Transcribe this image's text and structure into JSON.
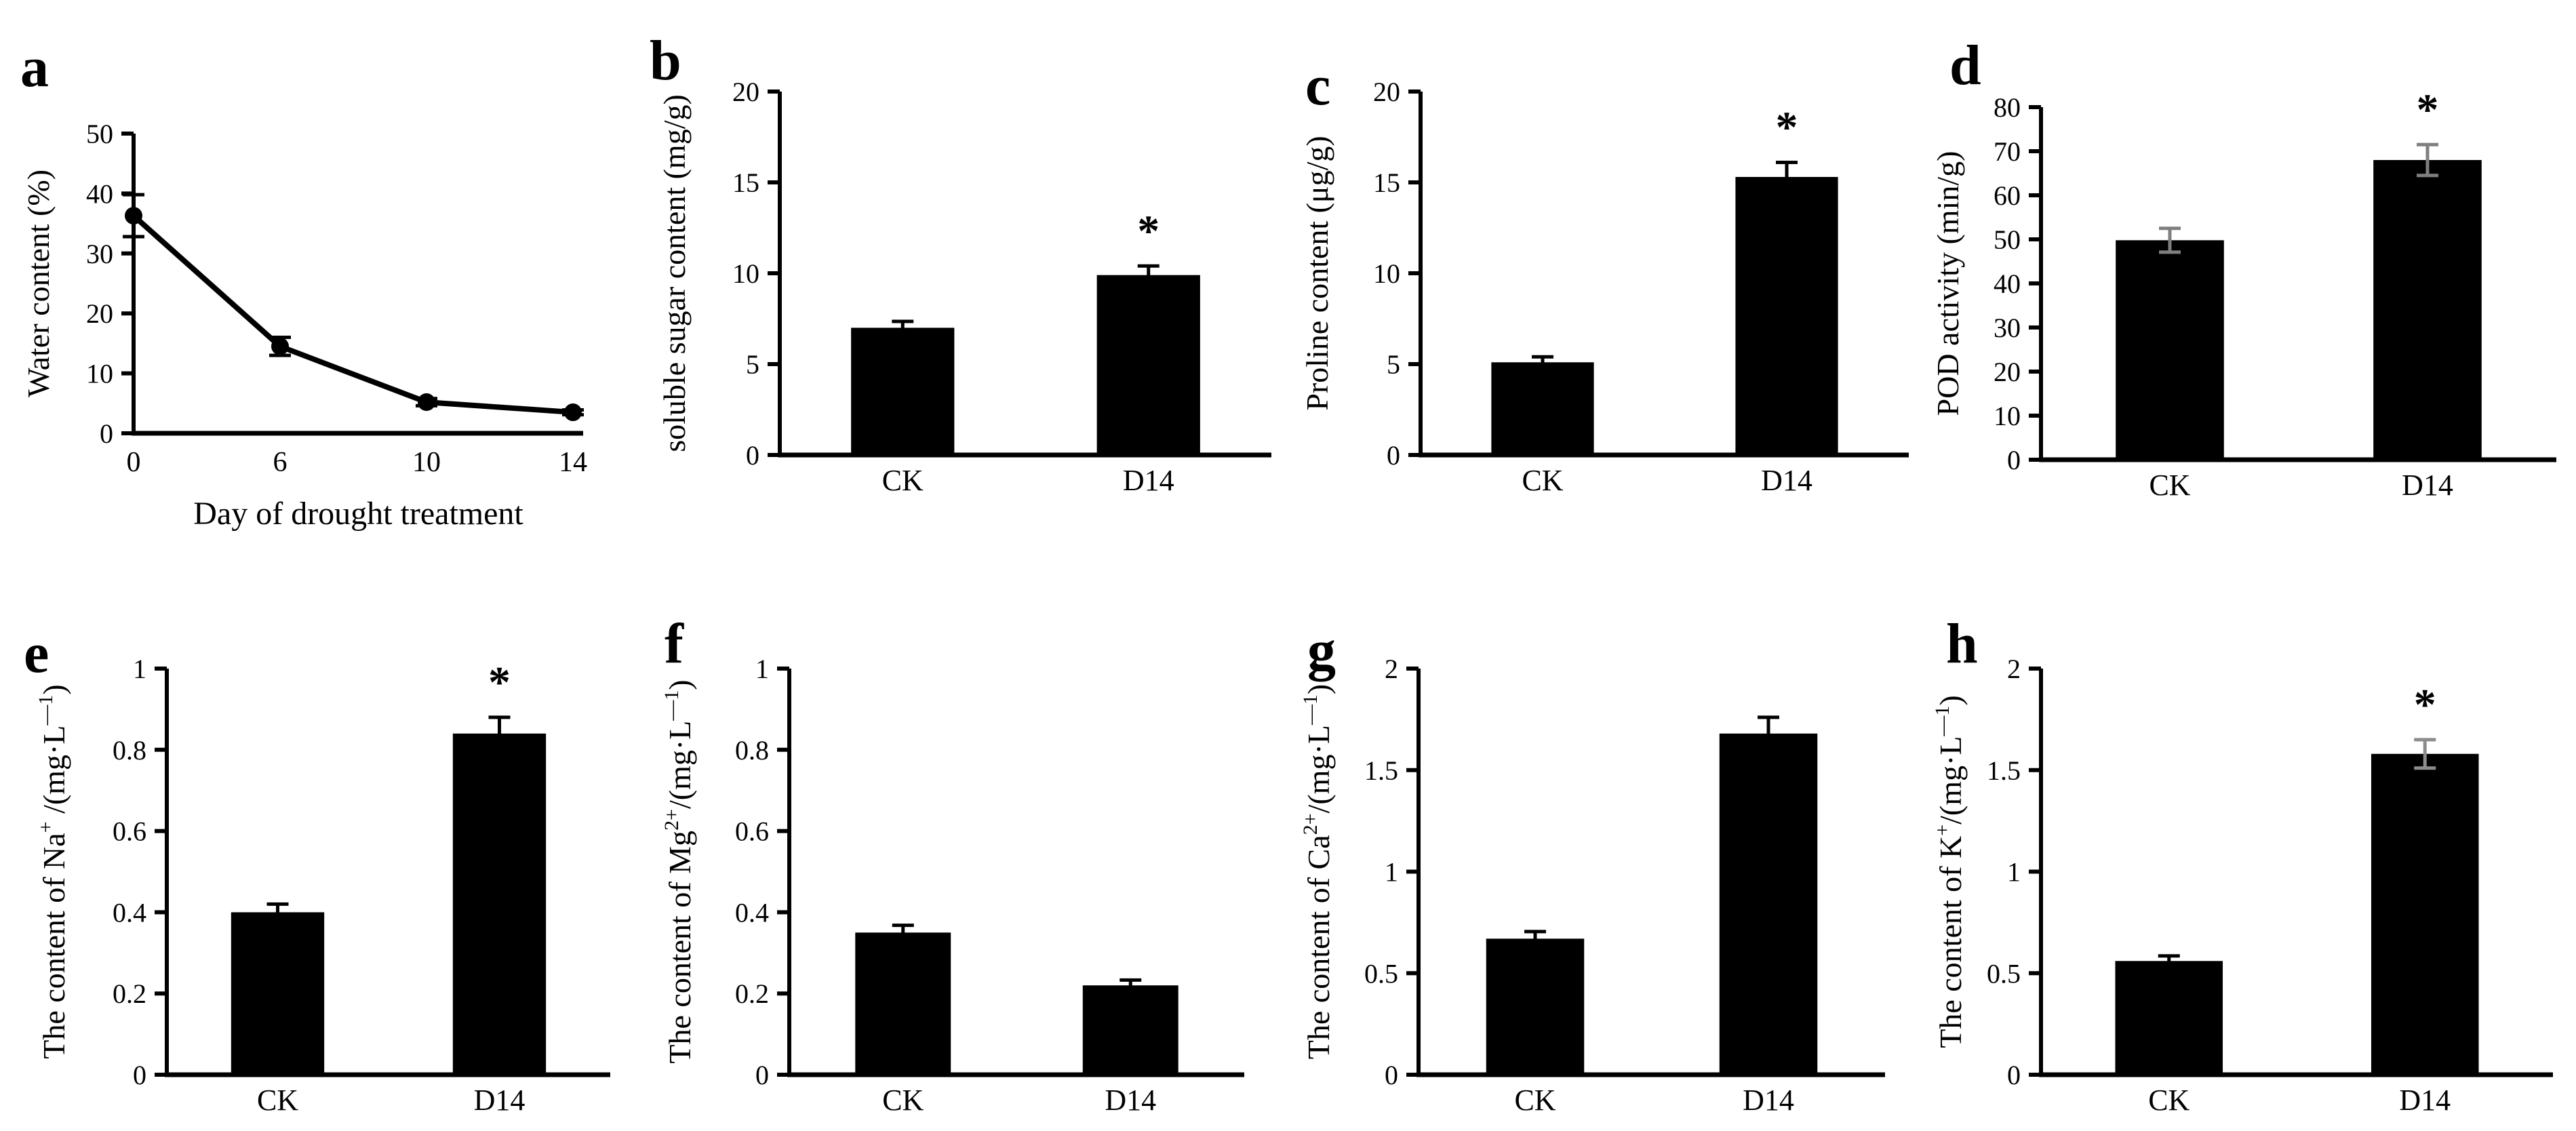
{
  "figure": {
    "background": "#ffffff",
    "foreground": "#000000",
    "gray_error_color": "#7f7f7f",
    "treatment_labels": [
      "CK",
      "D14"
    ],
    "significance_symbol": "*"
  },
  "chart_data": [
    {
      "panel": "a",
      "type": "line",
      "ylabel_segments": [
        {
          "t": "Water content (%)"
        }
      ],
      "xlabel": "Day of drought treatment",
      "x_categories": [
        "0",
        "6",
        "10",
        "14"
      ],
      "values": [
        36.3,
        14.5,
        5.2,
        3.5
      ],
      "errors": [
        3.5,
        1.5,
        0.6,
        0.4
      ],
      "ylim": [
        0,
        50
      ],
      "yticks": [
        "0",
        "10",
        "20",
        "30",
        "40",
        "50"
      ],
      "line_color": "#000000",
      "marker": "circle"
    },
    {
      "panel": "b",
      "type": "bar",
      "ylabel_segments": [
        {
          "t": "soluble sugar content (mg/g)"
        }
      ],
      "categories": [
        "CK",
        "D14"
      ],
      "values": [
        7.0,
        9.9
      ],
      "errors": [
        0.35,
        0.5
      ],
      "sig": [
        "",
        "*"
      ],
      "ylim": [
        0,
        20
      ],
      "yticks": [
        "0",
        "5",
        "10",
        "15",
        "20"
      ],
      "bar_color": "#000000",
      "error_colors": [
        "#000000",
        "#000000"
      ]
    },
    {
      "panel": "c",
      "type": "bar",
      "ylabel_segments": [
        {
          "t": "Proline content (μg/g)"
        }
      ],
      "categories": [
        "CK",
        "D14"
      ],
      "values": [
        5.1,
        15.3
      ],
      "errors": [
        0.3,
        0.8
      ],
      "sig": [
        "",
        "*"
      ],
      "ylim": [
        0,
        20
      ],
      "yticks": [
        "0",
        "5",
        "10",
        "15",
        "20"
      ],
      "bar_color": "#000000",
      "error_colors": [
        "#000000",
        "#000000"
      ]
    },
    {
      "panel": "d",
      "type": "bar",
      "ylabel_segments": [
        {
          "t": "POD activity (min/g)"
        }
      ],
      "categories": [
        "CK",
        "D14"
      ],
      "values": [
        49.8,
        68.0
      ],
      "errors": [
        2.7,
        3.5
      ],
      "sig": [
        "",
        "*"
      ],
      "ylim": [
        0,
        80
      ],
      "yticks": [
        "0",
        "10",
        "20",
        "30",
        "40",
        "50",
        "60",
        "70",
        "80"
      ],
      "bar_color": "#000000",
      "error_colors": [
        "#7f7f7f",
        "#7f7f7f"
      ]
    },
    {
      "panel": "e",
      "type": "bar",
      "ylabel_segments": [
        {
          "t": "The content of  Na"
        },
        {
          "t": "+",
          "sup": true
        },
        {
          "t": " /(mg·L"
        },
        {
          "t": "—1",
          "sup": true
        },
        {
          "t": ")"
        }
      ],
      "categories": [
        "CK",
        "D14"
      ],
      "values": [
        0.4,
        0.84
      ],
      "errors": [
        0.02,
        0.04
      ],
      "sig": [
        "",
        "*"
      ],
      "ylim": [
        0,
        1
      ],
      "yticks": [
        "0",
        "0.2",
        "0.4",
        "0.6",
        "0.8",
        "1"
      ],
      "bar_color": "#000000",
      "error_colors": [
        "#000000",
        "#000000"
      ]
    },
    {
      "panel": "f",
      "type": "bar",
      "ylabel_segments": [
        {
          "t": "The content of  Mg"
        },
        {
          "t": "2+",
          "sup": true
        },
        {
          "t": "/(mg·L"
        },
        {
          "t": "—1",
          "sup": true
        },
        {
          "t": ")"
        }
      ],
      "categories": [
        "CK",
        "D14"
      ],
      "values": [
        0.35,
        0.22
      ],
      "errors": [
        0.018,
        0.013
      ],
      "sig": [
        "",
        ""
      ],
      "ylim": [
        0,
        1
      ],
      "yticks": [
        "0",
        "0.2",
        "0.4",
        "0.6",
        "0.8",
        "1"
      ],
      "bar_color": "#000000",
      "error_colors": [
        "#000000",
        "#000000"
      ]
    },
    {
      "panel": "g",
      "type": "bar",
      "ylabel_segments": [
        {
          "t": "The content of  Ca"
        },
        {
          "t": "2+",
          "sup": true
        },
        {
          "t": "/(mg·L"
        },
        {
          "t": "—1",
          "sup": true
        },
        {
          "t": ")"
        }
      ],
      "categories": [
        "CK",
        "D14"
      ],
      "values": [
        0.67,
        1.68
      ],
      "errors": [
        0.035,
        0.08
      ],
      "sig": [
        "",
        ""
      ],
      "ylim": [
        0,
        2
      ],
      "yticks": [
        "0",
        "0.5",
        "1",
        "1.5",
        "2"
      ],
      "bar_color": "#000000",
      "error_colors": [
        "#000000",
        "#000000"
      ]
    },
    {
      "panel": "h",
      "type": "bar",
      "ylabel_segments": [
        {
          "t": "The content of  K"
        },
        {
          "t": "+",
          "sup": true
        },
        {
          "t": "/(mg·L"
        },
        {
          "t": "—1",
          "sup": true
        },
        {
          "t": ")"
        }
      ],
      "categories": [
        "CK",
        "D14"
      ],
      "values": [
        0.56,
        1.58
      ],
      "errors": [
        0.025,
        0.07
      ],
      "sig": [
        "",
        "*"
      ],
      "ylim": [
        0,
        2
      ],
      "yticks": [
        "0",
        "0.5",
        "1",
        "1.5",
        "2"
      ],
      "bar_color": "#000000",
      "error_colors": [
        "#000000",
        "#8c8c8c"
      ]
    }
  ]
}
